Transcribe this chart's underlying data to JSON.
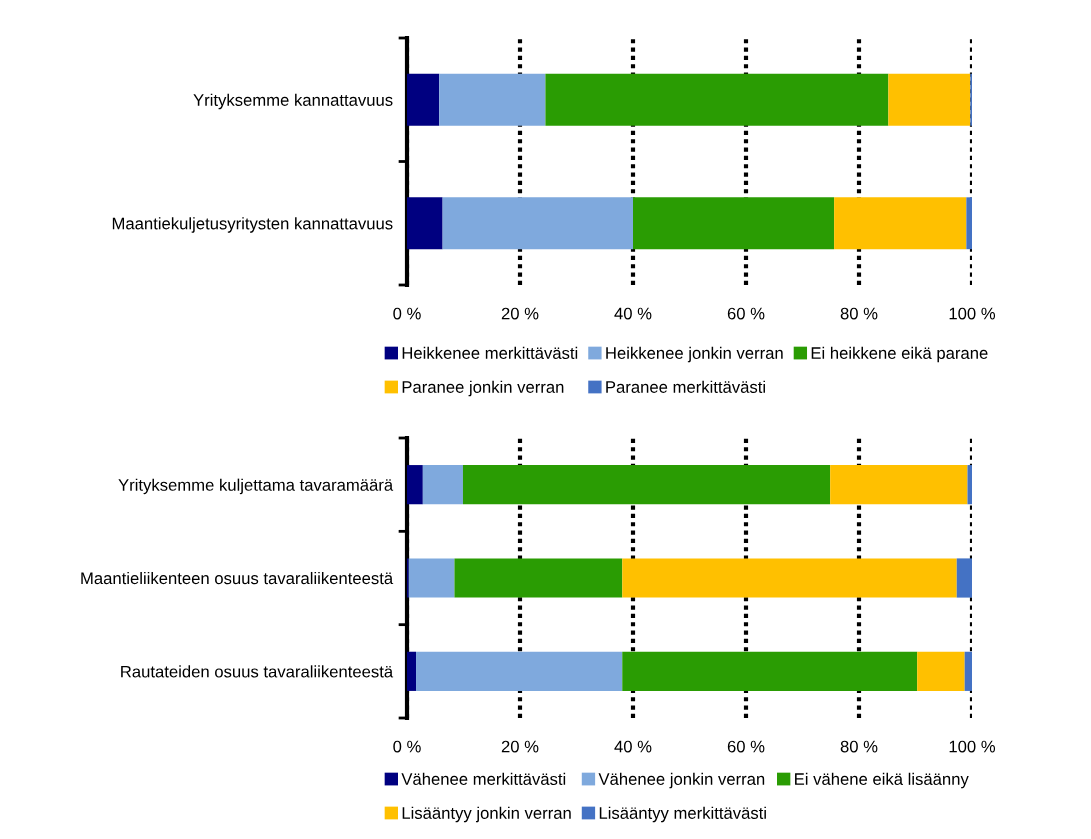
{
  "chart_data": [
    {
      "type": "bar",
      "orientation": "horizontal",
      "stacked": true,
      "categories": [
        "Yrityksemme kannattavuus",
        "Maantiekuljetusyritysten kannattavuus"
      ],
      "xlim": [
        0,
        100
      ],
      "xticks": [
        {
          "value": 0,
          "label": "0 %"
        },
        {
          "value": 20,
          "label": "20 %"
        },
        {
          "value": 40,
          "label": "40 %"
        },
        {
          "value": 60,
          "label": "60 %"
        },
        {
          "value": 80,
          "label": "80 %"
        },
        {
          "value": 100,
          "label": "100 %"
        }
      ],
      "grid": "x",
      "legend": "bottom",
      "series": [
        {
          "name": "Heikkenee merkittävästi",
          "color": "#000080",
          "values": [
            5.7,
            6.3
          ]
        },
        {
          "name": "Heikkenee jonkin verran",
          "color": "#7fa9dd",
          "values": [
            18.8,
            33.7
          ]
        },
        {
          "name": "Ei heikkene eikä parane",
          "color": "#2a9c03",
          "values": [
            60.7,
            35.6
          ]
        },
        {
          "name": "Paranee jonkin verran",
          "color": "#ffc000",
          "values": [
            14.5,
            23.4
          ]
        },
        {
          "name": "Paranee merkittävästi",
          "color": "#4472c4",
          "values": [
            0.3,
            1.0
          ]
        }
      ]
    },
    {
      "type": "bar",
      "orientation": "horizontal",
      "stacked": true,
      "categories": [
        "Yrityksemme kuljettama tavaramäärä",
        "Maantieliikenteen osuus tavaraliikenteestä",
        "Rautateiden osuus tavaraliikenteestä"
      ],
      "xlim": [
        0,
        100
      ],
      "xticks": [
        {
          "value": 0,
          "label": "0 %"
        },
        {
          "value": 20,
          "label": "20 %"
        },
        {
          "value": 40,
          "label": "40 %"
        },
        {
          "value": 60,
          "label": "60 %"
        },
        {
          "value": 80,
          "label": "80 %"
        },
        {
          "value": 100,
          "label": "100 %"
        }
      ],
      "grid": "x",
      "legend": "bottom",
      "series": [
        {
          "name": "Vähenee merkittävästi",
          "color": "#000080",
          "values": [
            2.8,
            0.3,
            1.6
          ]
        },
        {
          "name": "Vähenee jonkin verran",
          "color": "#7fa9dd",
          "values": [
            7.1,
            8.1,
            36.5
          ]
        },
        {
          "name": "Ei vähene eikä lisäänny",
          "color": "#2a9c03",
          "values": [
            65.0,
            29.7,
            52.2
          ]
        },
        {
          "name": "Lisääntyy jonkin verran",
          "color": "#ffc000",
          "values": [
            24.3,
            59.2,
            8.4
          ]
        },
        {
          "name": "Lisääntyy merkittävästi",
          "color": "#4472c4",
          "values": [
            0.8,
            2.7,
            1.3
          ]
        }
      ]
    }
  ]
}
